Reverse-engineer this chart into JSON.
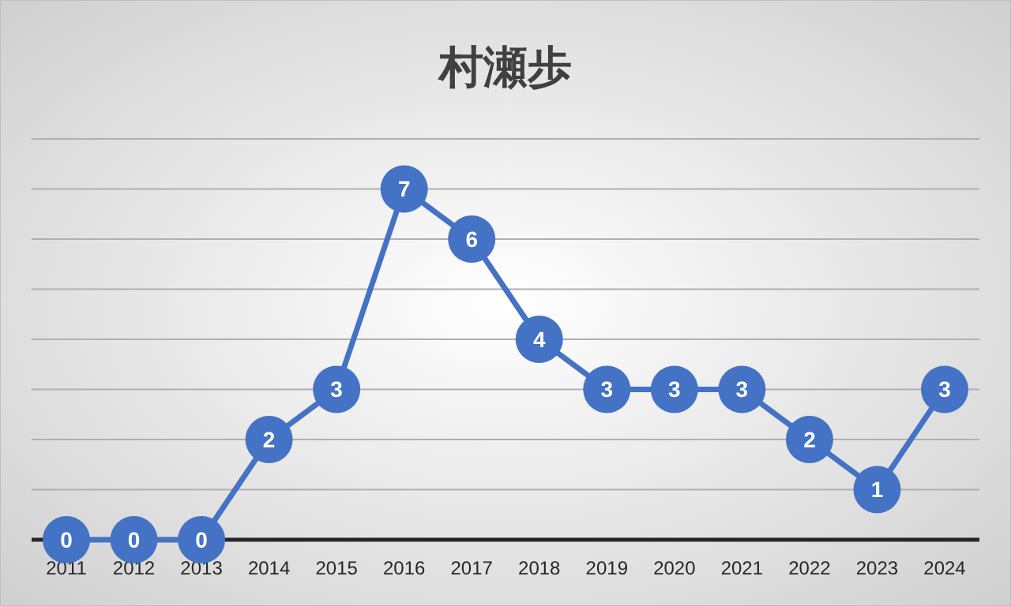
{
  "chart_data": {
    "type": "line",
    "title": "村瀬歩",
    "categories": [
      "2011",
      "2012",
      "2013",
      "2014",
      "2015",
      "2016",
      "2017",
      "2018",
      "2019",
      "2020",
      "2021",
      "2022",
      "2023",
      "2024"
    ],
    "series": [
      {
        "color": "#4472c4",
        "values": [
          0,
          0,
          0,
          2,
          3,
          7,
          6,
          4,
          3,
          3,
          3,
          2,
          1,
          3
        ]
      }
    ],
    "ylim": [
      0,
      8
    ],
    "yticks": [
      {
        "value": 0,
        "label": null
      },
      {
        "value": 1,
        "label": null
      },
      {
        "value": 2,
        "label": null
      },
      {
        "value": 3,
        "label": null
      },
      {
        "value": 4,
        "label": null
      },
      {
        "value": 5,
        "label": null
      },
      {
        "value": 6,
        "label": null
      },
      {
        "value": 7,
        "label": null
      },
      {
        "value": 8,
        "label": null
      }
    ],
    "grid": "y",
    "marker": "circle",
    "data_labels": true,
    "tick_labels": "x",
    "line_style": "solid"
  }
}
